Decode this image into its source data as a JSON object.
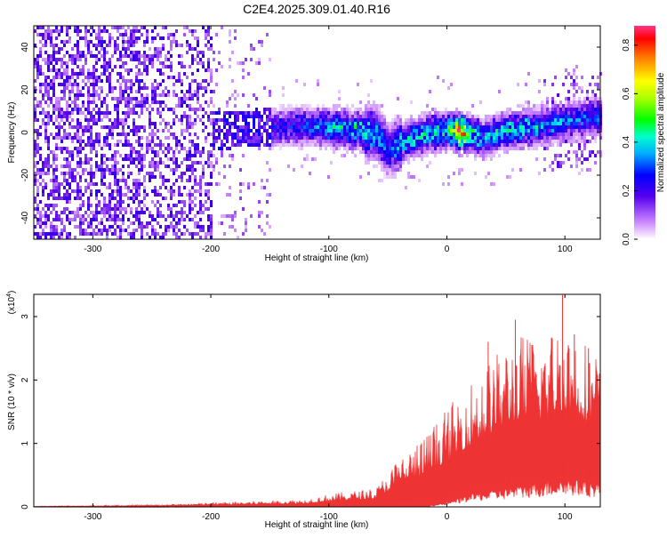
{
  "page_title": "C2E4.2025.309.01.40.R16",
  "chart_data": [
    {
      "type": "heatmap",
      "title": "C2E4.2025.309.01.40.R16",
      "xlabel": "Height of straight line (km)",
      "ylabel": "Frequency (Hz)",
      "xlim": [
        -350,
        130
      ],
      "ylim": [
        -50,
        50
      ],
      "xticks": [
        -300,
        -200,
        -100,
        0,
        100
      ],
      "yticks": [
        -40,
        -20,
        0,
        20,
        40
      ],
      "colorbar": {
        "label": "Normalized spectral amplitude",
        "range": [
          0,
          0.88
        ],
        "ticks": [
          "0.0",
          "0.2",
          "0.4",
          "0.6",
          "0.8"
        ],
        "tick_values": [
          0.0,
          0.2,
          0.4,
          0.6,
          0.8
        ]
      },
      "ridge": {
        "x": [
          -200,
          -150,
          -120,
          -100,
          -80,
          -60,
          -50,
          -40,
          -20,
          0,
          10,
          20,
          30,
          50,
          80,
          100,
          130
        ],
        "center_hz": [
          2,
          3,
          4,
          3,
          2,
          0,
          -8,
          -4,
          0,
          2,
          1,
          0,
          -2,
          2,
          4,
          6,
          8
        ],
        "peak_amplitude": [
          0.2,
          0.25,
          0.3,
          0.42,
          0.45,
          0.4,
          0.3,
          0.4,
          0.45,
          0.45,
          0.88,
          0.5,
          0.4,
          0.45,
          0.4,
          0.35,
          0.3
        ]
      }
    },
    {
      "type": "line",
      "xlabel": "Height of straight line (km)",
      "ylabel": "SNR (10 * v/v)",
      "multiplier_label": "(x10",
      "multiplier_exponent": "4",
      "xlim": [
        -350,
        130
      ],
      "ylim": [
        0,
        3.35
      ],
      "xticks": [
        -300,
        -200,
        -100,
        0,
        100
      ],
      "yticks": [
        0,
        1,
        2,
        3
      ],
      "color": "#ee3333",
      "envelope": {
        "x": [
          -350,
          -250,
          -200,
          -150,
          -120,
          -100,
          -80,
          -60,
          -50,
          -40,
          -20,
          0,
          20,
          40,
          60,
          80,
          100,
          120,
          130
        ],
        "max": [
          0.01,
          0.03,
          0.07,
          0.1,
          0.12,
          0.2,
          0.25,
          0.3,
          0.55,
          0.8,
          1.1,
          1.55,
          2.0,
          2.4,
          2.75,
          2.7,
          3.0,
          2.6,
          2.4
        ],
        "min": [
          0,
          0,
          0,
          0,
          0,
          0,
          0,
          0,
          0,
          0,
          0,
          0.05,
          0.15,
          0.2,
          0.25,
          0.3,
          0.35,
          0.3,
          0.3
        ]
      }
    }
  ]
}
